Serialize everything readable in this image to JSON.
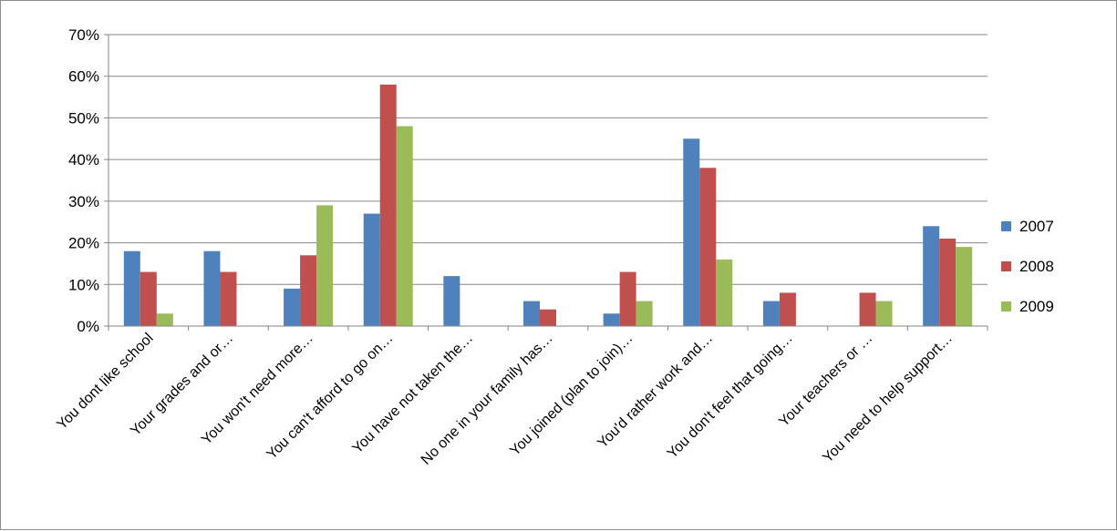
{
  "chart_data": {
    "type": "bar",
    "title": "",
    "xlabel": "",
    "ylabel": "",
    "ylim": [
      0,
      0.7
    ],
    "yticks": [
      0,
      0.1,
      0.2,
      0.3,
      0.4,
      0.5,
      0.6,
      0.7
    ],
    "ytick_labels": [
      "0%",
      "10%",
      "20%",
      "30%",
      "40%",
      "50%",
      "60%",
      "70%"
    ],
    "grid": true,
    "legend_position": "right",
    "categories": [
      "You dont like school",
      "Your grades and or…",
      "You won't need more…",
      "You can't afford to go on…",
      "You have not taken the…",
      "No one in your family has…",
      "You joined (plan to join)…",
      "You'd rather work and…",
      "You don't feel that going…",
      "Your teachers or …",
      "You need to help support…"
    ],
    "series": [
      {
        "name": "2007",
        "color": "#4f81bd",
        "values": [
          0.18,
          0.18,
          0.09,
          0.27,
          0.12,
          0.06,
          0.03,
          0.45,
          0.06,
          null,
          0.24
        ]
      },
      {
        "name": "2008",
        "color": "#c0504d",
        "values": [
          0.13,
          0.13,
          0.17,
          0.58,
          null,
          0.04,
          0.13,
          0.38,
          0.08,
          0.08,
          0.21
        ]
      },
      {
        "name": "2009",
        "color": "#9bbb59",
        "values": [
          0.03,
          null,
          0.29,
          0.48,
          null,
          null,
          0.06,
          0.16,
          null,
          0.06,
          0.19
        ]
      }
    ]
  }
}
